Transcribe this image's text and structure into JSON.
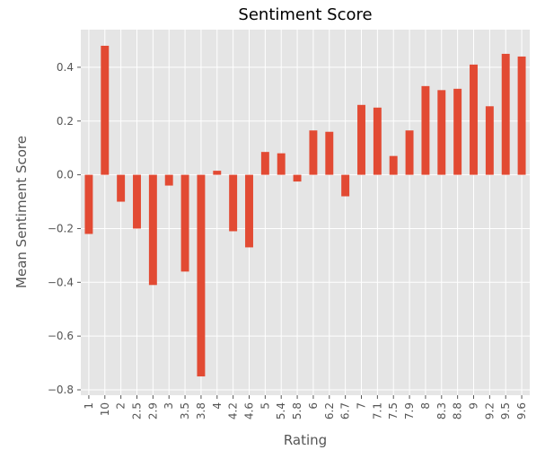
{
  "chart_data": {
    "type": "bar",
    "title": "Sentiment Score",
    "xlabel": "Rating",
    "ylabel": "Mean Sentiment Score",
    "categories": [
      "1",
      "10",
      "2",
      "2.5",
      "2.9",
      "3",
      "3.5",
      "3.8",
      "4",
      "4.2",
      "4.6",
      "5",
      "5.4",
      "5.8",
      "6",
      "6.2",
      "6.7",
      "7",
      "7.1",
      "7.5",
      "7.9",
      "8",
      "8.3",
      "8.8",
      "9",
      "9.2",
      "9.5",
      "9.6"
    ],
    "values": [
      -0.22,
      0.48,
      -0.1,
      -0.2,
      -0.41,
      -0.04,
      -0.36,
      -0.75,
      0.015,
      -0.21,
      -0.27,
      0.085,
      0.08,
      -0.025,
      0.165,
      0.16,
      -0.08,
      0.26,
      0.25,
      0.07,
      0.165,
      0.33,
      0.315,
      0.32,
      0.41,
      0.255,
      0.45,
      0.44
    ],
    "yticks": [
      -0.8,
      -0.6,
      -0.4,
      -0.2,
      0.0,
      0.2,
      0.4
    ],
    "ytick_labels": [
      "−0.8",
      "−0.6",
      "−0.4",
      "−0.2",
      "0.0",
      "0.2",
      "0.4"
    ],
    "ylim": [
      -0.82,
      0.54
    ],
    "grid": true,
    "legend": "none",
    "colors": {
      "bar": "#E24A33",
      "background": "#E5E5E5",
      "grid": "#FFFFFF",
      "tick": "#555555"
    }
  }
}
